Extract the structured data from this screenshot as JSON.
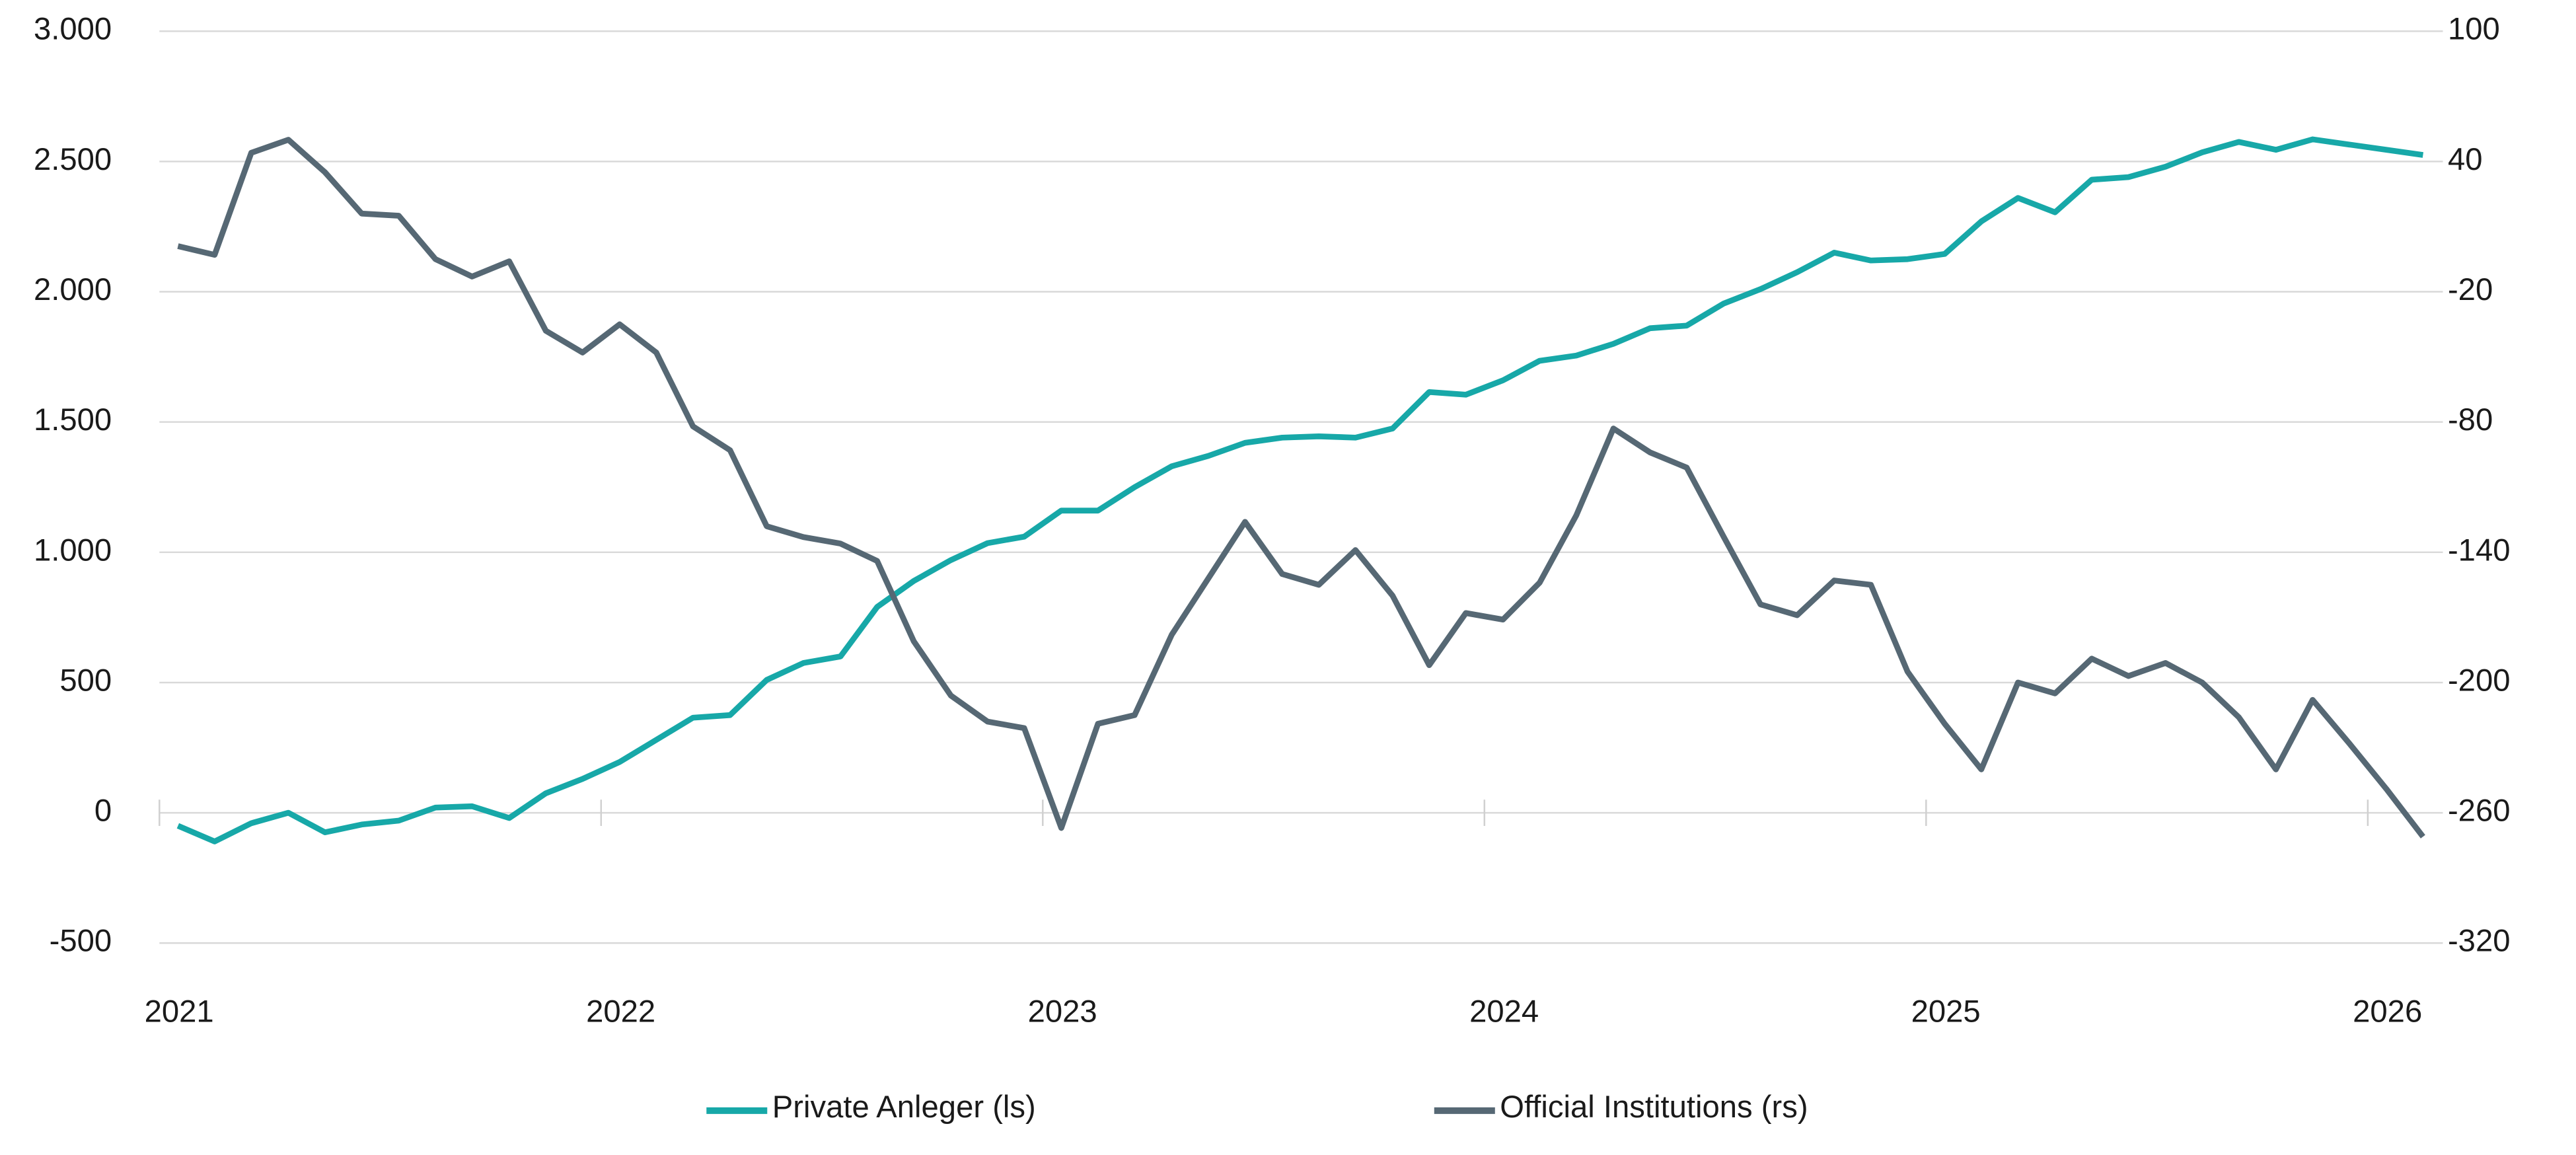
{
  "chart_data": {
    "type": "line",
    "x": [
      2021.042,
      2021.125,
      2021.208,
      2021.292,
      2021.375,
      2021.458,
      2021.542,
      2021.625,
      2021.708,
      2021.792,
      2021.875,
      2021.958,
      2022.042,
      2022.125,
      2022.208,
      2022.292,
      2022.375,
      2022.458,
      2022.542,
      2022.625,
      2022.708,
      2022.792,
      2022.875,
      2022.958,
      2023.042,
      2023.125,
      2023.208,
      2023.292,
      2023.375,
      2023.458,
      2023.542,
      2023.625,
      2023.708,
      2023.792,
      2023.875,
      2023.958,
      2024.042,
      2024.125,
      2024.208,
      2024.292,
      2024.375,
      2024.458,
      2024.542,
      2024.625,
      2024.708,
      2024.792,
      2024.875,
      2024.958,
      2025.042,
      2025.125,
      2025.208,
      2025.292,
      2025.375,
      2025.458,
      2025.542,
      2025.625,
      2025.708,
      2025.792,
      2025.875,
      2025.958,
      2026.042,
      2026.125
    ],
    "xlim": [
      2021,
      2026.17
    ],
    "xticks": [
      2021,
      2022,
      2023,
      2024,
      2025,
      2026
    ],
    "ylim": [
      -500,
      3000
    ],
    "yticks": [
      {
        "value": -500,
        "label": "-500"
      },
      {
        "value": 0,
        "label": "0"
      },
      {
        "value": 500,
        "label": "500"
      },
      {
        "value": 1000,
        "label": "1.000"
      },
      {
        "value": 1500,
        "label": "1.500"
      },
      {
        "value": 2000,
        "label": "2.000"
      },
      {
        "value": 2500,
        "label": "2.500"
      },
      {
        "value": 3000,
        "label": "3.000"
      }
    ],
    "y2lim": [
      -320,
      100
    ],
    "y2ticks": [
      -320,
      -260,
      -200,
      -140,
      -80,
      -20,
      40,
      100
    ],
    "grid": true,
    "series": [
      {
        "name": "Private Anleger (ls)",
        "color": "#17a8a8",
        "values": [
          -50,
          -110,
          -40,
          0,
          -75,
          -45,
          -30,
          20,
          25,
          -20,
          75,
          130,
          195,
          280,
          365,
          375,
          510,
          575,
          600,
          790,
          890,
          970,
          1035,
          1060,
          1160,
          1160,
          1250,
          1330,
          1370,
          1420,
          1440,
          1445,
          1440,
          1475,
          1615,
          1605,
          1660,
          1735,
          1755,
          1800,
          1860,
          1870,
          1955,
          2010,
          2075,
          2150,
          2120,
          2125,
          2145,
          2270,
          2360,
          2305,
          2430,
          2440,
          2480,
          2535,
          2575,
          2545,
          2585,
          2565,
          2545,
          2525
        ]
      },
      {
        "name": "Official Institutions (rs)",
        "color": "#566874",
        "axis": "y2",
        "values": [
          1,
          -3,
          44,
          50,
          35,
          16,
          15,
          -5,
          -13,
          -6,
          -38,
          -48,
          -35,
          -48,
          -82,
          -93,
          -128,
          -133,
          -136,
          -144,
          -181,
          -206,
          -218,
          -221,
          -267,
          -219,
          -215,
          -178,
          -152,
          -126,
          -150,
          -155,
          -139,
          -160,
          -192,
          -168,
          -171,
          -154,
          -123,
          -83,
          -94,
          -101,
          -133,
          -164,
          -169,
          -153,
          -155,
          -195,
          -219,
          -240,
          -200,
          -205,
          -189,
          -197,
          -191,
          -200,
          -216,
          -240,
          -208,
          -228,
          -249,
          -271
        ]
      }
    ],
    "legend": "bottom"
  }
}
